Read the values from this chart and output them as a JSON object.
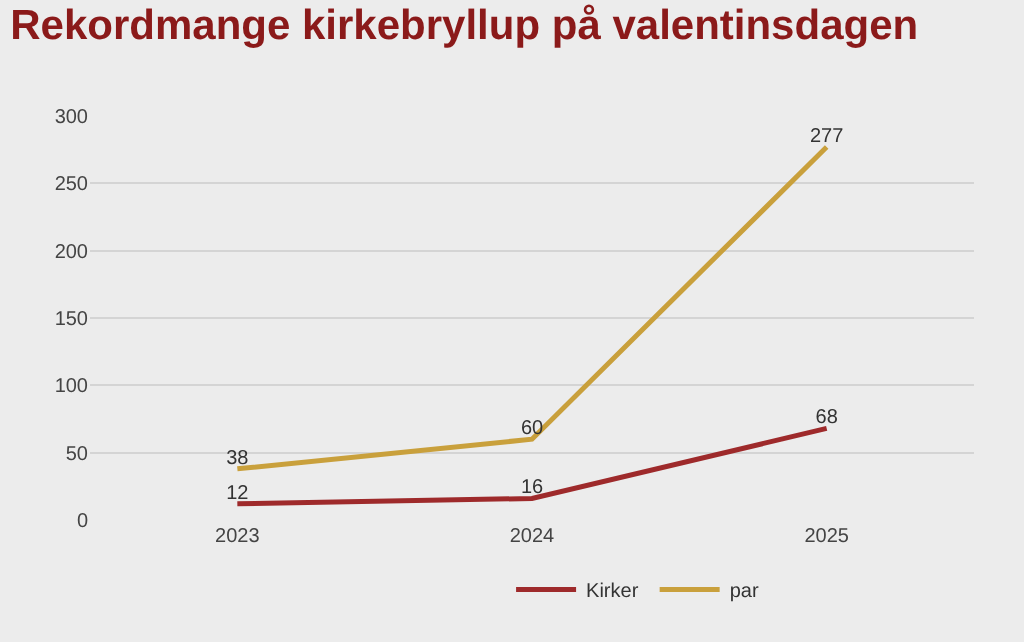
{
  "chart_data": {
    "type": "line",
    "title": "Rekordmange kirkebryllup på valentinsdagen",
    "categories": [
      "2023",
      "2024",
      "2025"
    ],
    "series": [
      {
        "name": "Kirker",
        "color": "#9e2a2b",
        "values": [
          12,
          16,
          68
        ]
      },
      {
        "name": "par",
        "color": "#c9a03c",
        "values": [
          38,
          60,
          277
        ]
      }
    ],
    "ylim": [
      0,
      300
    ],
    "yticks": [
      0,
      50,
      100,
      150,
      200,
      250,
      300
    ],
    "grid": "y",
    "legend": "bottom",
    "data_labels": true,
    "marker": "none",
    "line_style": "solid"
  }
}
